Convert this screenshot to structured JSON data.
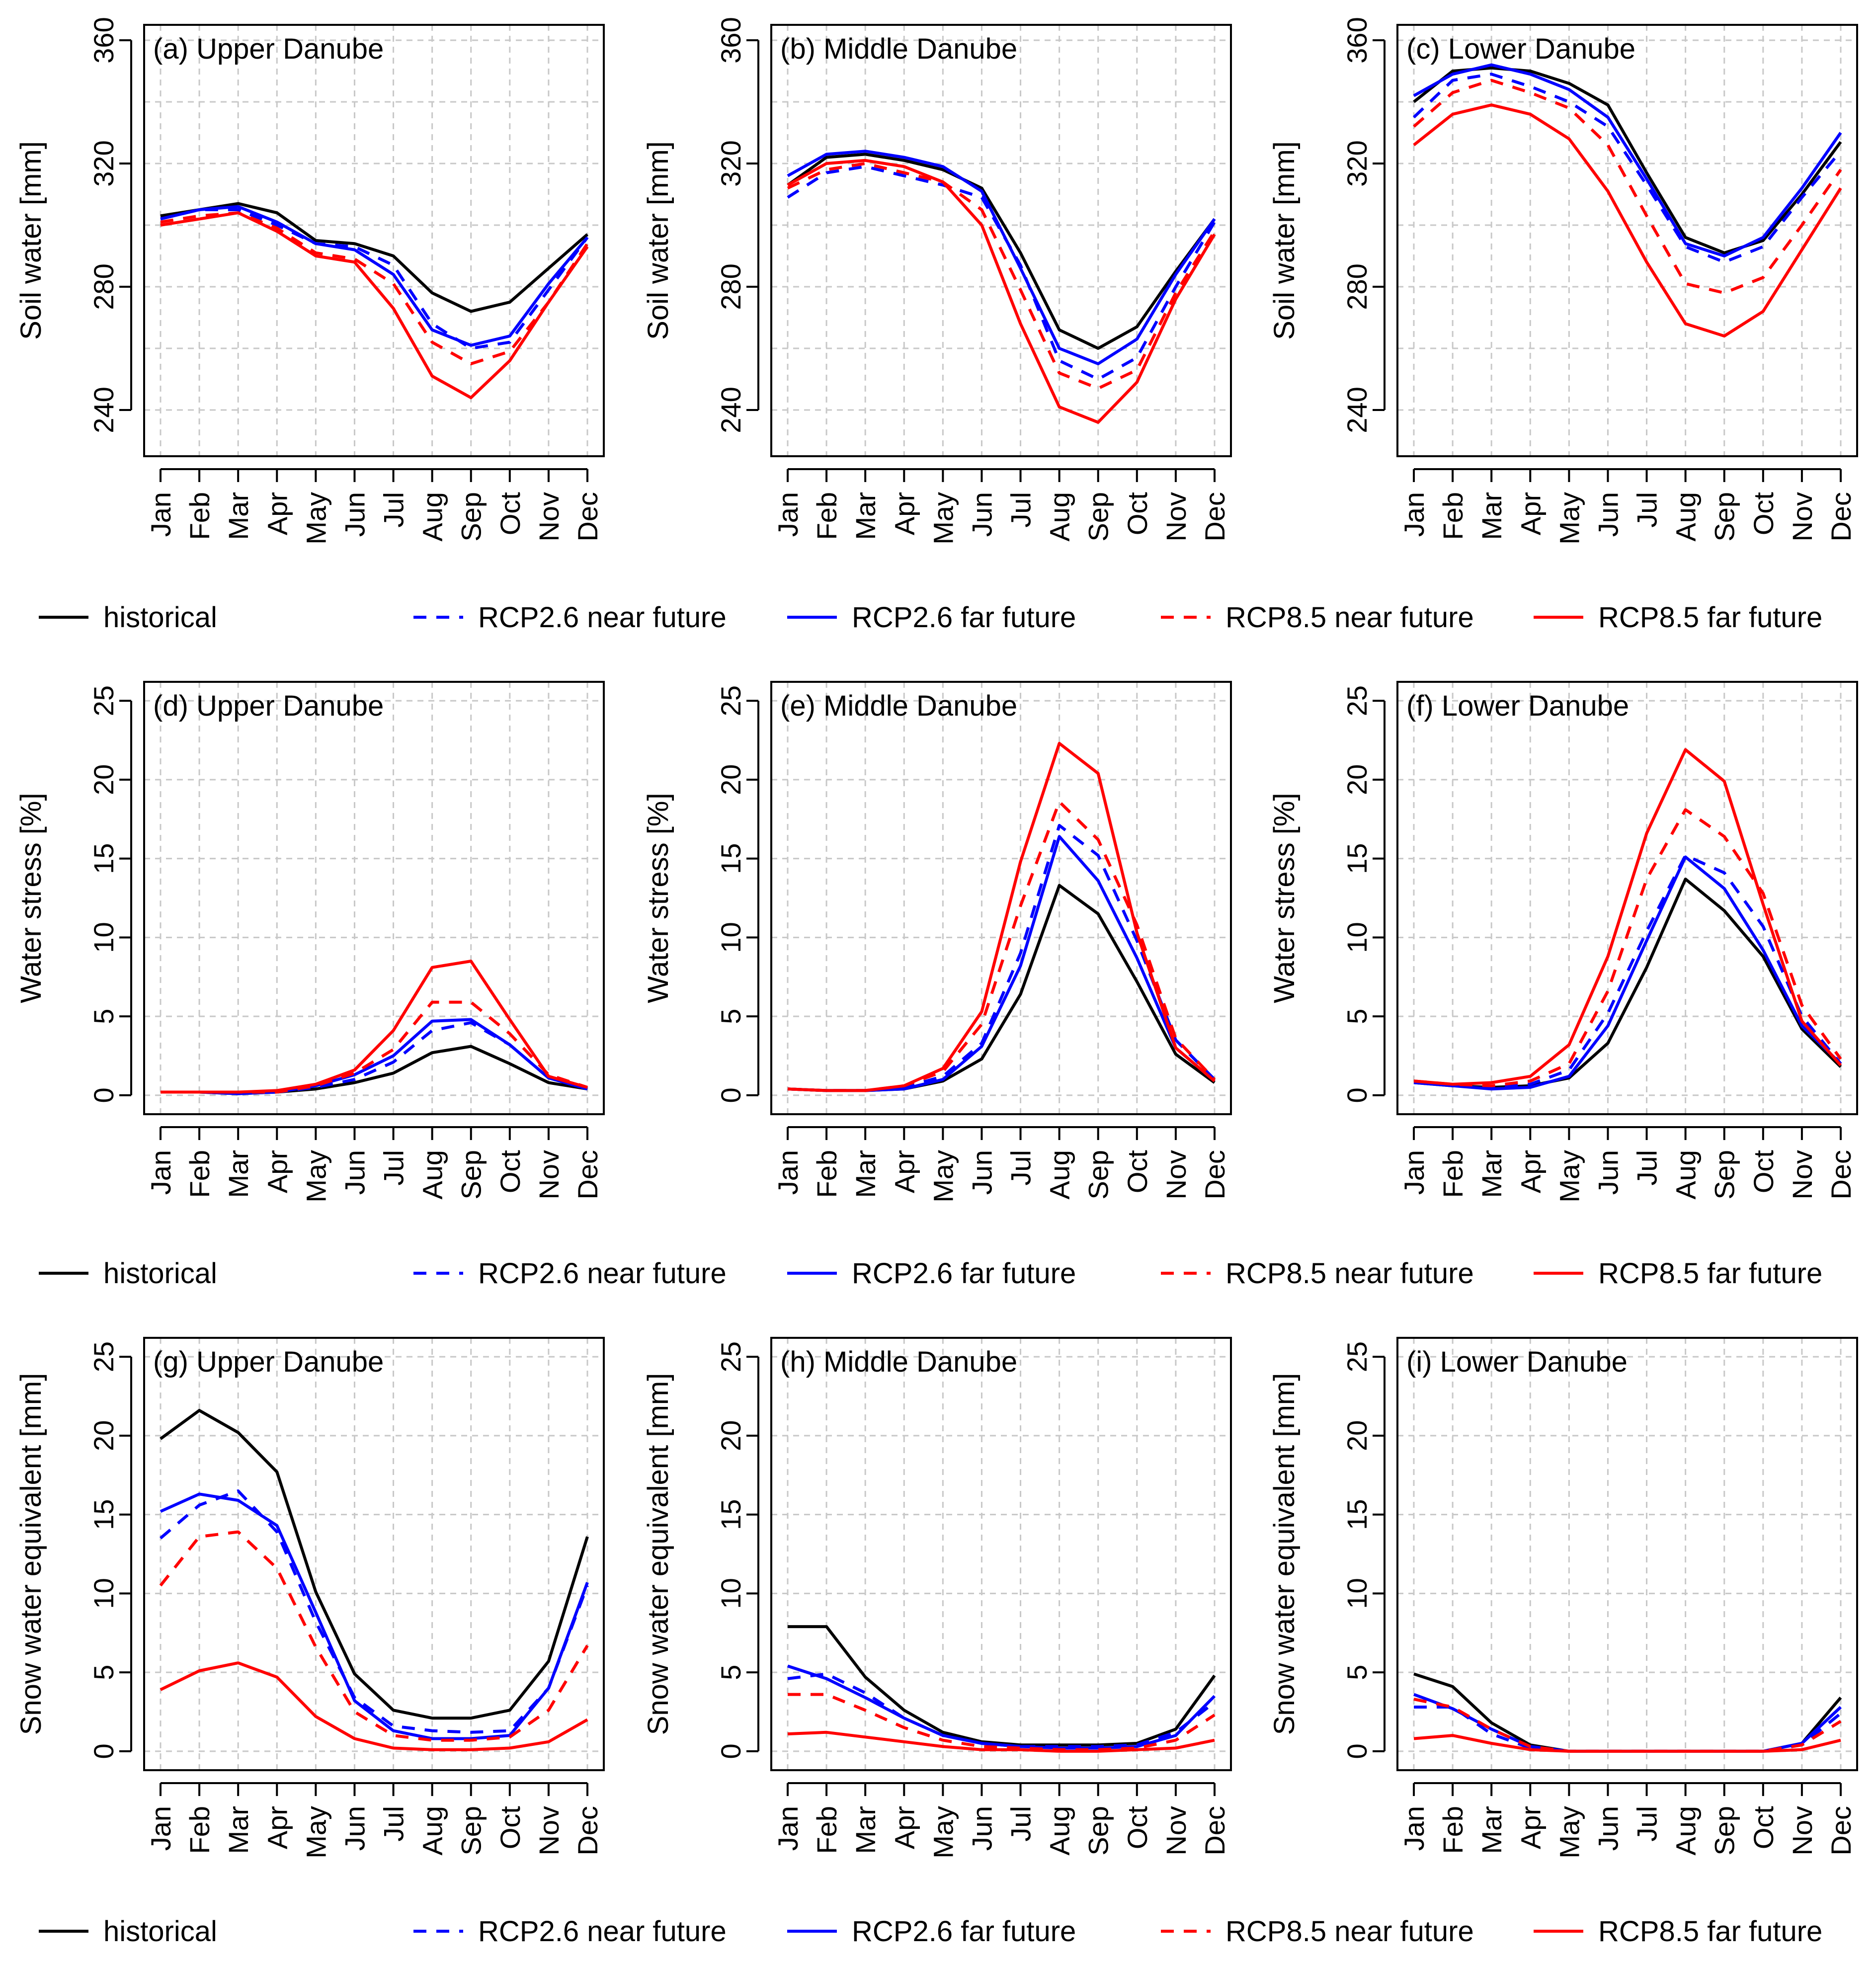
{
  "chart_data": {
    "type": "line",
    "x_categories": [
      "Jan",
      "Feb",
      "Mar",
      "Apr",
      "May",
      "Jun",
      "Jul",
      "Aug",
      "Sep",
      "Oct",
      "Nov",
      "Dec"
    ],
    "series_styles": [
      {
        "key": "hist",
        "name": "historical",
        "color": "#000000",
        "dash": "solid"
      },
      {
        "key": "r26n",
        "name": "RCP2.6 near future",
        "color": "#0000ff",
        "dash": "dashed"
      },
      {
        "key": "r26f",
        "name": "RCP2.6 far future",
        "color": "#0000ff",
        "dash": "solid"
      },
      {
        "key": "r85n",
        "name": "RCP8.5 near future",
        "color": "#ff0000",
        "dash": "dashed"
      },
      {
        "key": "r85f",
        "name": "RCP8.5 far future",
        "color": "#ff0000",
        "dash": "solid"
      }
    ],
    "legend": {
      "labels": [
        "historical",
        "RCP2.6 near future",
        "RCP2.6 far future",
        "RCP8.5 near future",
        "RCP8.5 far future"
      ]
    },
    "rows": [
      {
        "ylabel": "Soil water [mm]",
        "ylim": [
          225,
          365
        ],
        "yticks": [
          240,
          280,
          320,
          360
        ],
        "ygrid": [
          240,
          260,
          280,
          300,
          320,
          340,
          360
        ],
        "panels": [
          {
            "title": "(a) Upper Danube",
            "series": {
              "hist": [
                303,
                305,
                307,
                304,
                295,
                294,
                290,
                278,
                272,
                275,
                286,
                297
              ],
              "r26n": [
                302,
                305,
                305,
                300,
                294,
                293,
                287,
                268,
                260,
                262,
                279,
                296
              ],
              "r26f": [
                302,
                305,
                306,
                301,
                294,
                292,
                284,
                266,
                261,
                264,
                281,
                296
              ],
              "r85n": [
                301,
                303,
                304,
                299,
                291,
                289,
                281,
                262,
                255,
                259,
                275,
                294
              ],
              "r85f": [
                300,
                302,
                304,
                298,
                290,
                288,
                273,
                251,
                244,
                256,
                275,
                293
              ]
            }
          },
          {
            "title": "(b) Middle Danube",
            "series": {
              "hist": [
                313,
                322,
                323,
                321,
                318,
                312,
                291,
                266,
                260,
                267,
                285,
                302
              ],
              "r26n": [
                309,
                317,
                319,
                316,
                313,
                309,
                287,
                256,
                250,
                257,
                280,
                301
              ],
              "r26f": [
                316,
                323,
                324,
                322,
                319,
                311,
                286,
                260,
                255,
                263,
                284,
                302
              ],
              "r85n": [
                312,
                318,
                320,
                317,
                314,
                305,
                279,
                252,
                247,
                253,
                278,
                298
              ],
              "r85f": [
                313,
                320,
                321,
                319,
                314,
                300,
                268,
                241,
                236,
                249,
                276,
                297
              ]
            }
          },
          {
            "title": "(c) Lower Danube",
            "series": {
              "hist": [
                340,
                350,
                351,
                350,
                346,
                339,
                317,
                296,
                291,
                295,
                310,
                327
              ],
              "r26n": [
                335,
                347,
                349,
                345,
                340,
                332,
                313,
                293,
                288,
                293,
                309,
                324
              ],
              "r26f": [
                342,
                349,
                352,
                349,
                344,
                335,
                315,
                294,
                290,
                296,
                312,
                330
              ],
              "r85n": [
                332,
                343,
                347,
                343,
                338,
                326,
                303,
                281,
                278,
                283,
                300,
                318
              ],
              "r85f": [
                326,
                336,
                339,
                336,
                328,
                311,
                288,
                268,
                264,
                272,
                292,
                312
              ]
            }
          }
        ]
      },
      {
        "ylabel": "Water stress [%]",
        "ylim": [
          -1.2,
          26.2
        ],
        "yticks": [
          0,
          5,
          10,
          15,
          20,
          25
        ],
        "ygrid": [
          0,
          5,
          10,
          15,
          20,
          25
        ],
        "panels": [
          {
            "title": "(d) Upper Danube",
            "series": {
              "hist": [
                0.2,
                0.2,
                0.1,
                0.2,
                0.4,
                0.8,
                1.4,
                2.7,
                3.1,
                2.0,
                0.8,
                0.4
              ],
              "r26n": [
                0.2,
                0.2,
                0.2,
                0.2,
                0.5,
                1.0,
                2.1,
                4.1,
                4.6,
                3.2,
                1.1,
                0.4
              ],
              "r26f": [
                0.2,
                0.2,
                0.1,
                0.2,
                0.6,
                1.3,
                2.5,
                4.7,
                4.8,
                3.2,
                1.1,
                0.4
              ],
              "r85n": [
                0.2,
                0.2,
                0.2,
                0.2,
                0.6,
                1.4,
                2.9,
                5.9,
                5.9,
                3.9,
                1.3,
                0.5
              ],
              "r85f": [
                0.2,
                0.2,
                0.2,
                0.3,
                0.7,
                1.6,
                4.1,
                8.1,
                8.5,
                4.8,
                1.2,
                0.5
              ]
            }
          },
          {
            "title": "(e) Middle Danube",
            "series": {
              "hist": [
                0.4,
                0.3,
                0.3,
                0.4,
                0.9,
                2.3,
                6.4,
                13.3,
                11.5,
                7.2,
                2.6,
                0.8
              ],
              "r26n": [
                0.4,
                0.3,
                0.3,
                0.5,
                1.2,
                3.3,
                9.0,
                17.1,
                15.2,
                9.8,
                3.5,
                1.0
              ],
              "r26f": [
                0.4,
                0.3,
                0.3,
                0.4,
                1.0,
                3.1,
                8.2,
                16.4,
                13.6,
                8.7,
                3.0,
                0.9
              ],
              "r85n": [
                0.4,
                0.3,
                0.3,
                0.6,
                1.5,
                4.5,
                12.0,
                18.6,
                16.2,
                10.8,
                3.6,
                1.0
              ],
              "r85f": [
                0.4,
                0.3,
                0.3,
                0.6,
                1.7,
                5.3,
                14.8,
                22.3,
                20.4,
                10.3,
                3.0,
                0.9
              ]
            }
          },
          {
            "title": "(f) Lower Danube",
            "series": {
              "hist": [
                0.8,
                0.6,
                0.5,
                0.6,
                1.1,
                3.3,
                8.1,
                13.7,
                11.7,
                8.8,
                4.2,
                1.8
              ],
              "r26n": [
                0.9,
                0.6,
                0.5,
                0.7,
                1.6,
                5.2,
                10.4,
                15.2,
                14.1,
                10.7,
                5.0,
                2.0
              ],
              "r26f": [
                0.8,
                0.6,
                0.4,
                0.5,
                1.2,
                4.4,
                9.8,
                15.1,
                13.1,
                9.2,
                4.4,
                2.0
              ],
              "r85n": [
                0.9,
                0.7,
                0.6,
                0.9,
                2.0,
                6.6,
                13.7,
                18.1,
                16.4,
                12.8,
                5.7,
                2.3
              ],
              "r85f": [
                0.9,
                0.7,
                0.8,
                1.2,
                3.2,
                8.8,
                16.6,
                21.9,
                19.9,
                12.1,
                4.7,
                1.9
              ]
            }
          }
        ]
      },
      {
        "ylabel": "Snow water equivalent [mm]",
        "ylim": [
          -1.2,
          26.2
        ],
        "yticks": [
          0,
          5,
          10,
          15,
          20,
          25
        ],
        "ygrid": [
          0,
          5,
          10,
          15,
          20,
          25
        ],
        "panels": [
          {
            "title": "(g) Upper Danube",
            "series": {
              "hist": [
                19.8,
                21.6,
                20.2,
                17.7,
                10.1,
                4.9,
                2.6,
                2.1,
                2.1,
                2.6,
                5.7,
                13.6
              ],
              "r26n": [
                13.5,
                15.6,
                16.5,
                13.9,
                8.2,
                3.4,
                1.6,
                1.3,
                1.2,
                1.3,
                4.0,
                10.5
              ],
              "r26f": [
                15.2,
                16.3,
                15.9,
                14.3,
                8.8,
                3.2,
                1.3,
                0.8,
                0.8,
                1.0,
                4.0,
                10.7
              ],
              "r85n": [
                10.5,
                13.6,
                13.9,
                11.6,
                6.6,
                2.5,
                1.0,
                0.7,
                0.7,
                0.9,
                2.6,
                6.7
              ],
              "r85f": [
                3.9,
                5.1,
                5.6,
                4.7,
                2.2,
                0.8,
                0.2,
                0.1,
                0.1,
                0.2,
                0.6,
                2.0
              ]
            }
          },
          {
            "title": "(h) Middle Danube",
            "series": {
              "hist": [
                7.9,
                7.9,
                4.7,
                2.6,
                1.2,
                0.6,
                0.4,
                0.4,
                0.4,
                0.5,
                1.4,
                4.8
              ],
              "r26n": [
                4.6,
                4.9,
                3.7,
                2.1,
                1.0,
                0.5,
                0.3,
                0.3,
                0.3,
                0.4,
                1.2,
                3.1
              ],
              "r26f": [
                5.4,
                4.6,
                3.4,
                2.1,
                1.0,
                0.5,
                0.3,
                0.2,
                0.2,
                0.3,
                1.0,
                3.5
              ],
              "r85n": [
                3.6,
                3.6,
                2.6,
                1.5,
                0.7,
                0.3,
                0.2,
                0.1,
                0.1,
                0.2,
                0.7,
                2.3
              ],
              "r85f": [
                1.1,
                1.2,
                0.9,
                0.6,
                0.3,
                0.1,
                0.1,
                0.0,
                0.0,
                0.1,
                0.2,
                0.7
              ]
            }
          },
          {
            "title": "(i) Lower Danube",
            "series": {
              "hist": [
                4.9,
                4.1,
                1.8,
                0.4,
                0.0,
                0.0,
                0.0,
                0.0,
                0.0,
                0.0,
                0.5,
                3.4
              ],
              "r26n": [
                2.8,
                2.8,
                1.1,
                0.2,
                0.0,
                0.0,
                0.0,
                0.0,
                0.0,
                0.0,
                0.4,
                2.4
              ],
              "r26f": [
                3.6,
                2.7,
                1.4,
                0.3,
                0.0,
                0.0,
                0.0,
                0.0,
                0.0,
                0.0,
                0.5,
                2.8
              ],
              "r85n": [
                3.3,
                2.8,
                1.4,
                0.3,
                0.0,
                0.0,
                0.0,
                0.0,
                0.0,
                0.0,
                0.4,
                1.9
              ],
              "r85f": [
                0.8,
                1.0,
                0.5,
                0.1,
                0.0,
                0.0,
                0.0,
                0.0,
                0.0,
                0.0,
                0.1,
                0.7
              ]
            }
          }
        ]
      }
    ]
  }
}
